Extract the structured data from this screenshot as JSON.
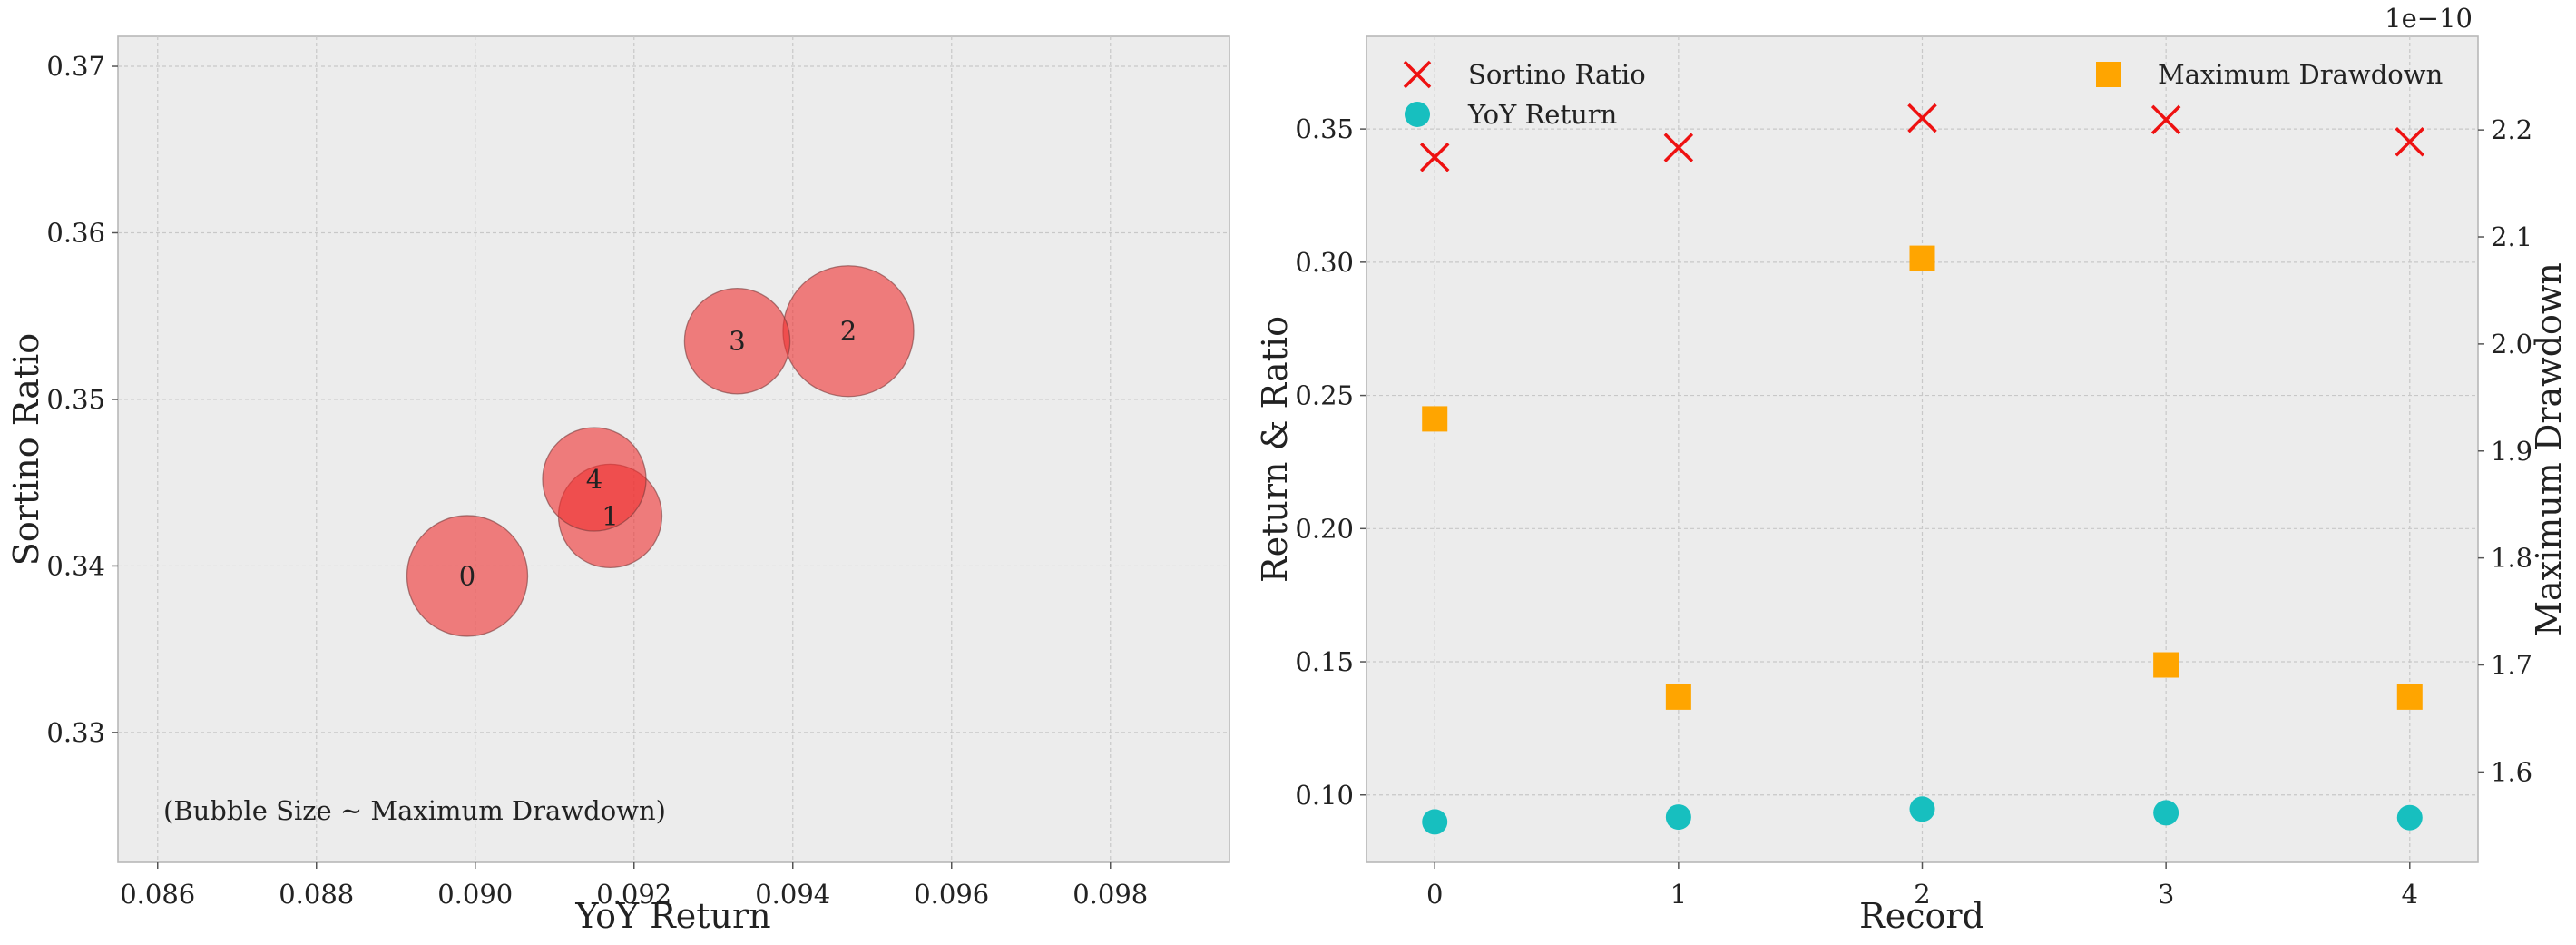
{
  "chart_data": [
    {
      "type": "scatter",
      "variant": "bubble",
      "xlabel": "YoY Return",
      "ylabel": "Sortino Ratio",
      "annotation": "(Bubble Size ~ Maximum Drawdown)",
      "xlim": [
        0.0855,
        0.0995
      ],
      "ylim": [
        0.3222,
        0.3718
      ],
      "xticks": [
        0.086,
        0.088,
        0.09,
        0.092,
        0.094,
        0.096,
        0.098
      ],
      "xtick_labels": [
        "0.086",
        "0.088",
        "0.090",
        "0.092",
        "0.094",
        "0.096",
        "0.098"
      ],
      "yticks": [
        0.33,
        0.34,
        0.35,
        0.36,
        0.37
      ],
      "ytick_labels": [
        "0.33",
        "0.34",
        "0.35",
        "0.36",
        "0.37"
      ],
      "grid": true,
      "bubble_color": "#f03030",
      "points": [
        {
          "label": "0",
          "x": 0.0899,
          "y": 0.3394,
          "size": 1.93e-10
        },
        {
          "label": "1",
          "x": 0.0917,
          "y": 0.343,
          "size": 1.67e-10
        },
        {
          "label": "2",
          "x": 0.0947,
          "y": 0.3541,
          "size": 2.08e-10
        },
        {
          "label": "3",
          "x": 0.0933,
          "y": 0.3535,
          "size": 1.7e-10
        },
        {
          "label": "4",
          "x": 0.0915,
          "y": 0.3452,
          "size": 1.67e-10
        }
      ]
    },
    {
      "type": "scatter",
      "xlabel": "Record",
      "ylabel": "Return & Ratio",
      "y2label": "Maximum Drawdown",
      "y2_offset_text": "1e−10",
      "xlim": [
        -0.28,
        4.28
      ],
      "ylim": [
        0.0747,
        0.3848
      ],
      "y2lim": [
        1.5155,
        2.2875
      ],
      "xticks": [
        0,
        1,
        2,
        3,
        4
      ],
      "xtick_labels": [
        "0",
        "1",
        "2",
        "3",
        "4"
      ],
      "yticks": [
        0.1,
        0.15,
        0.2,
        0.25,
        0.3,
        0.35
      ],
      "ytick_labels": [
        "0.10",
        "0.15",
        "0.20",
        "0.25",
        "0.30",
        "0.35"
      ],
      "y2ticks": [
        1.6,
        1.7,
        1.8,
        1.9,
        2.0,
        2.1,
        2.2
      ],
      "y2tick_labels": [
        "1.6",
        "1.7",
        "1.8",
        "1.9",
        "2.0",
        "2.1",
        "2.2"
      ],
      "grid": true,
      "legend_left_position": "top-left",
      "legend_right_position": "top-right",
      "x": [
        0,
        1,
        2,
        3,
        4
      ],
      "series": [
        {
          "name": "Sortino Ratio",
          "axis": "left",
          "marker": "x",
          "color": "#ee1111",
          "values": [
            0.3394,
            0.343,
            0.3541,
            0.3535,
            0.3452
          ]
        },
        {
          "name": "YoY Return",
          "axis": "left",
          "marker": "circle",
          "color": "#17bfbf",
          "values": [
            0.0899,
            0.0917,
            0.0947,
            0.0933,
            0.0915
          ]
        },
        {
          "name": "Maximum Drawdown",
          "axis": "right",
          "marker": "square",
          "color": "#ffa500",
          "values": [
            1.93,
            1.67,
            2.08,
            1.7,
            1.67
          ]
        }
      ]
    }
  ]
}
